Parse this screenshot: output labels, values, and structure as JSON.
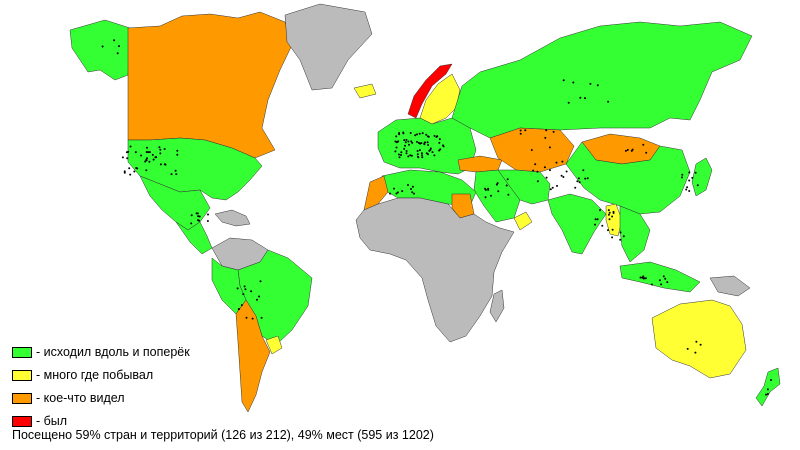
{
  "colors": {
    "green": "#33ff33",
    "yellow": "#ffff33",
    "orange": "#ff9900",
    "red": "#ff0000",
    "gray": "#bbbbbb",
    "outline": "#333333"
  },
  "legend": [
    {
      "label": "- исходил вдоль и поперёк",
      "color": "#33ff33"
    },
    {
      "label": "- много где побывал",
      "color": "#ffff33"
    },
    {
      "label": "- кое-что видел",
      "color": "#ff9900"
    },
    {
      "label": "- был",
      "color": "#ff0000"
    }
  ],
  "summary": "Посещено 59% стран и территорий (126 из 212), 49% мест (595 из 1202)",
  "regions": [
    {
      "name": "alaska",
      "status": "green"
    },
    {
      "name": "canada",
      "status": "orange"
    },
    {
      "name": "usa",
      "status": "green"
    },
    {
      "name": "greenland",
      "status": "gray"
    },
    {
      "name": "mexico",
      "status": "green"
    },
    {
      "name": "central-america",
      "status": "green"
    },
    {
      "name": "caribbean",
      "status": "gray"
    },
    {
      "name": "south-america-north",
      "status": "gray"
    },
    {
      "name": "brazil",
      "status": "green"
    },
    {
      "name": "peru",
      "status": "green"
    },
    {
      "name": "argentina-chile",
      "status": "orange"
    },
    {
      "name": "uruguay",
      "status": "yellow"
    },
    {
      "name": "iceland",
      "status": "yellow"
    },
    {
      "name": "norway",
      "status": "red"
    },
    {
      "name": "sweden-finland",
      "status": "yellow"
    },
    {
      "name": "europe",
      "status": "green"
    },
    {
      "name": "russia",
      "status": "green"
    },
    {
      "name": "turkey",
      "status": "orange"
    },
    {
      "name": "kazakhstan",
      "status": "orange"
    },
    {
      "name": "mongolia",
      "status": "orange"
    },
    {
      "name": "china",
      "status": "green"
    },
    {
      "name": "middle-east",
      "status": "green"
    },
    {
      "name": "iran",
      "status": "green"
    },
    {
      "name": "india",
      "status": "green"
    },
    {
      "name": "myanmar",
      "status": "yellow"
    },
    {
      "name": "southeast-asia",
      "status": "green"
    },
    {
      "name": "japan",
      "status": "green"
    },
    {
      "name": "indonesia",
      "status": "green"
    },
    {
      "name": "new-guinea",
      "status": "gray"
    },
    {
      "name": "north-africa",
      "status": "green"
    },
    {
      "name": "morocco",
      "status": "orange"
    },
    {
      "name": "libya",
      "status": "orange"
    },
    {
      "name": "africa",
      "status": "gray"
    },
    {
      "name": "yemen",
      "status": "yellow"
    },
    {
      "name": "madagascar",
      "status": "gray"
    },
    {
      "name": "australia",
      "status": "yellow"
    },
    {
      "name": "new-zealand",
      "status": "green"
    }
  ]
}
